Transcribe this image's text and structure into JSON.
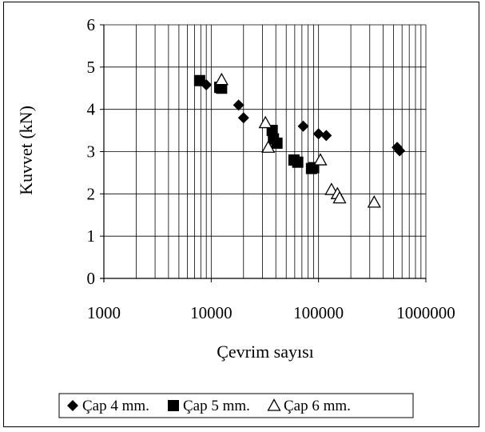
{
  "chart_data": {
    "type": "scatter",
    "title": "",
    "xlabel": "Çevrim sayısı",
    "ylabel": "Kuvvet (kN)",
    "x_scale": "log",
    "xlim": [
      1000,
      1000000
    ],
    "ylim": [
      0,
      6
    ],
    "x_ticks": [
      "1000",
      "10000",
      "100000",
      "1000000"
    ],
    "y_ticks": [
      "0",
      "1",
      "2",
      "3",
      "4",
      "5",
      "6"
    ],
    "grid": true,
    "legend_position": "bottom",
    "series": [
      {
        "name": "Çap 4 mm.",
        "marker": "diamond",
        "color": "#000000",
        "points": [
          [
            9000,
            4.58
          ],
          [
            18000,
            4.1
          ],
          [
            20000,
            3.8
          ],
          [
            72000,
            3.6
          ],
          [
            100000,
            3.42
          ],
          [
            118000,
            3.38
          ],
          [
            540000,
            3.1
          ],
          [
            570000,
            3.02
          ]
        ]
      },
      {
        "name": "Çap 5 mm.",
        "marker": "square",
        "color": "#000000",
        "points": [
          [
            7800,
            4.68
          ],
          [
            12000,
            4.52
          ],
          [
            12500,
            4.5
          ],
          [
            37000,
            3.5
          ],
          [
            38000,
            3.3
          ],
          [
            41000,
            3.2
          ],
          [
            59000,
            2.8
          ],
          [
            64000,
            2.75
          ],
          [
            86000,
            2.6
          ],
          [
            90000,
            2.62
          ]
        ]
      },
      {
        "name": "Çap 6 mm.",
        "marker": "triangle-open",
        "color": "#000000",
        "points": [
          [
            12500,
            4.7
          ],
          [
            32000,
            3.68
          ],
          [
            34000,
            3.1
          ],
          [
            104000,
            2.8
          ],
          [
            132000,
            2.1
          ],
          [
            150000,
            2.0
          ],
          [
            157000,
            1.9
          ],
          [
            330000,
            1.8
          ]
        ]
      }
    ]
  }
}
